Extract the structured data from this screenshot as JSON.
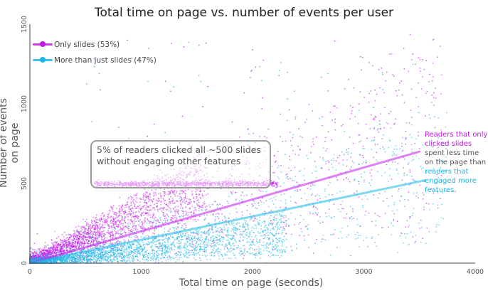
{
  "chart_data": {
    "type": "scatter",
    "title": "Total time on page vs. number of events per user",
    "xlabel": "Total time on page (seconds)",
    "ylabel": "Number of events on page",
    "xlim": [
      0,
      4000
    ],
    "ylim": [
      0,
      1500
    ],
    "x_ticks": [
      "0",
      "1000",
      "2000",
      "3000",
      "4000"
    ],
    "y_ticks": [
      "0",
      "500",
      "1000",
      "1500"
    ],
    "grid": false,
    "legend_position": "top-left",
    "series": [
      {
        "name": "Only slides (53%)",
        "color": "#c319e8",
        "trendline": {
          "x": [
            0,
            3500
          ],
          "y": [
            0,
            700
          ]
        },
        "samples": [
          [
            50,
            20
          ],
          [
            120,
            60
          ],
          [
            200,
            100
          ],
          [
            280,
            140
          ],
          [
            350,
            180
          ],
          [
            420,
            150
          ],
          [
            500,
            220
          ],
          [
            600,
            260
          ],
          [
            700,
            300
          ],
          [
            800,
            490
          ],
          [
            900,
            500
          ],
          [
            1000,
            495
          ],
          [
            1200,
            500
          ],
          [
            1400,
            490
          ],
          [
            1600,
            500
          ],
          [
            1800,
            495
          ],
          [
            2000,
            500
          ],
          [
            2200,
            480
          ],
          [
            2500,
            650
          ],
          [
            3000,
            700
          ],
          [
            3500,
            780
          ]
        ]
      },
      {
        "name": "More than just slides (47%)",
        "color": "#1bb7e6",
        "trendline": {
          "x": [
            0,
            3550
          ],
          "y": [
            0,
            520
          ]
        },
        "samples": [
          [
            60,
            15
          ],
          [
            150,
            30
          ],
          [
            250,
            45
          ],
          [
            400,
            60
          ],
          [
            600,
            90
          ],
          [
            800,
            120
          ],
          [
            1000,
            150
          ],
          [
            1200,
            180
          ],
          [
            1500,
            210
          ],
          [
            1800,
            260
          ],
          [
            2000,
            300
          ],
          [
            2300,
            330
          ],
          [
            2600,
            380
          ],
          [
            3000,
            430
          ],
          [
            3300,
            470
          ],
          [
            3600,
            520
          ]
        ]
      }
    ],
    "annotations": [
      {
        "text": "5% of readers clicked all ~500 slides without engaging other features",
        "x": 1450,
        "y": 500
      }
    ]
  },
  "callout": {
    "text": "5% of readers clicked all ~500 slides without engaging other features"
  },
  "side_note": {
    "part1": "Readers that only clicked slides",
    "part2": " spent less time on the page than ",
    "part3": "readers that engaged more features",
    "part4": "."
  }
}
